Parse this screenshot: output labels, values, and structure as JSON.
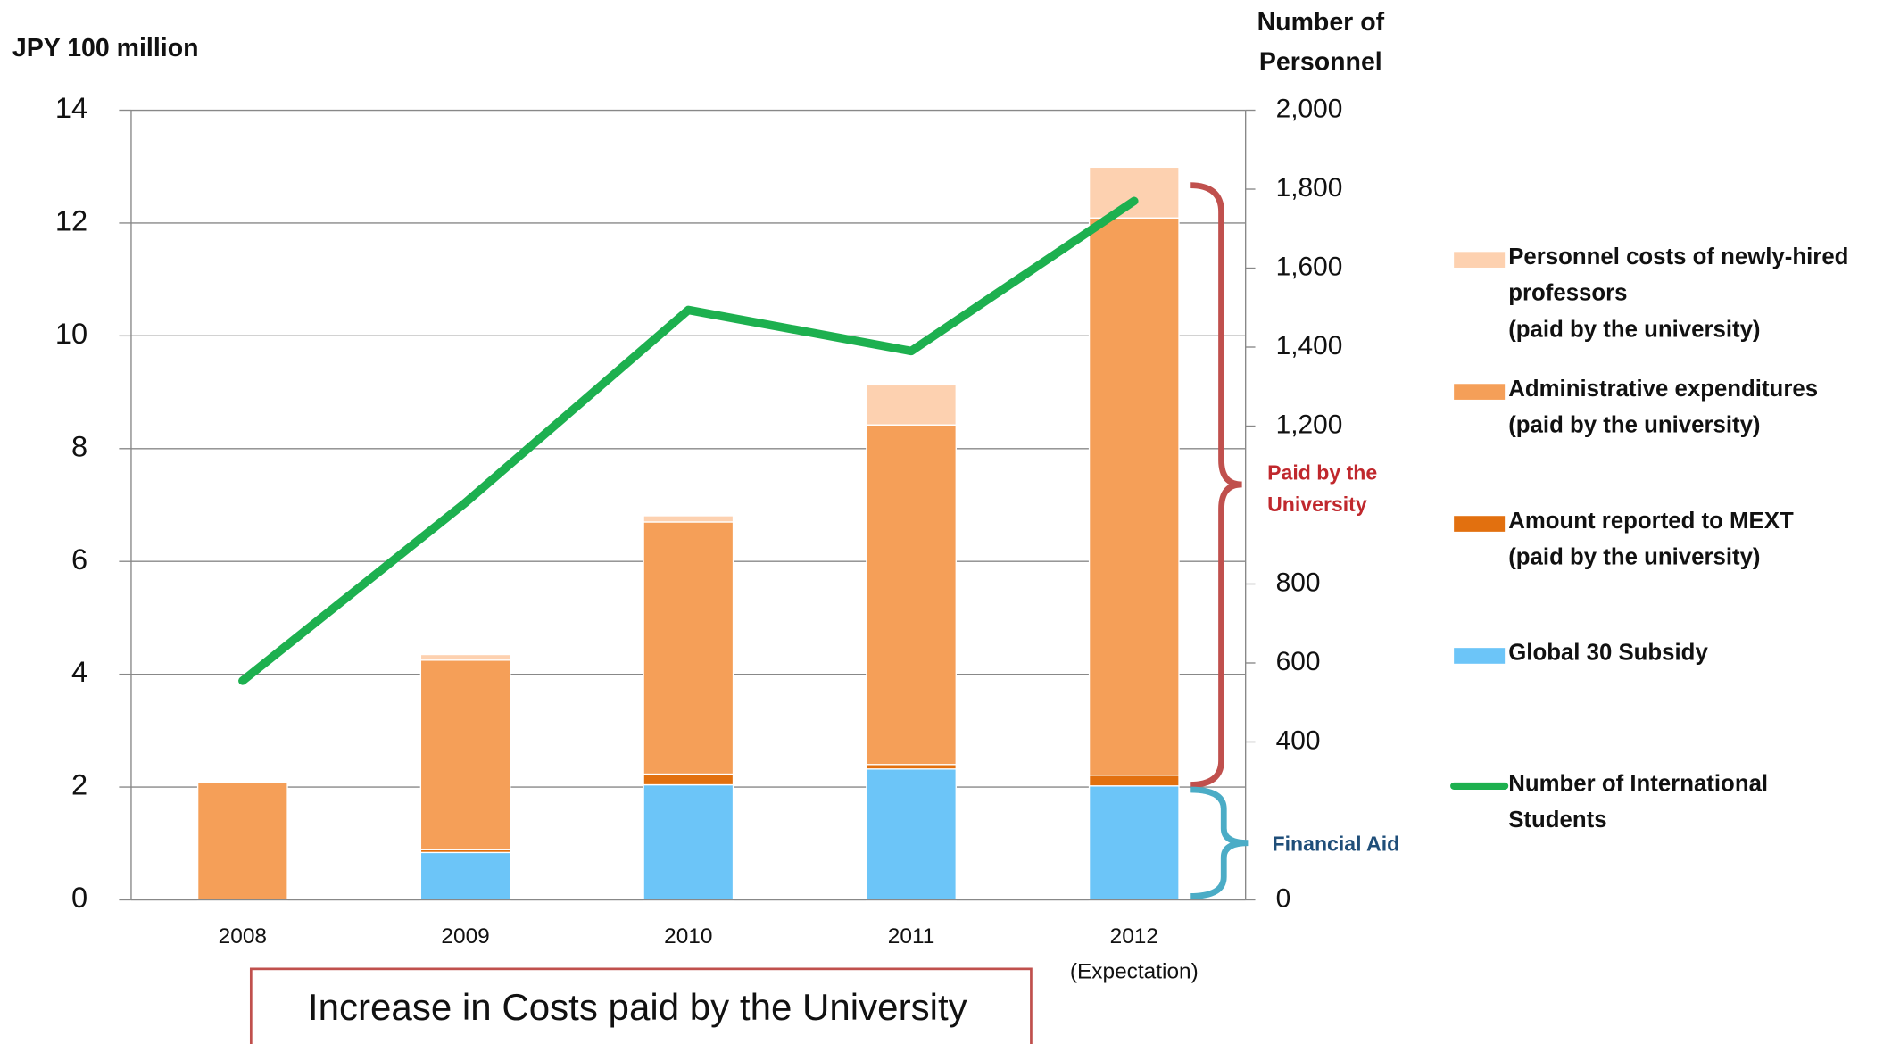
{
  "chart_data": {
    "type": "bar",
    "stacked": true,
    "y_axis_label": "JPY 100 million",
    "y2_axis_label": "Number of\nPersonnel",
    "categories": [
      "2008",
      "2009",
      "2010",
      "2011",
      "2012"
    ],
    "category_note": "(Expectation)",
    "series": [
      {
        "name": "Global 30 Subsidy",
        "color": "#6cc5f8",
        "values": [
          0,
          0.84,
          2.04,
          2.32,
          2.02
        ]
      },
      {
        "name": "Amount reported to MEXT\n(paid by the university)",
        "color": "#e2700f",
        "values": [
          0,
          0.05,
          0.19,
          0.08,
          0.19
        ]
      },
      {
        "name": "Administrative expenditures\n(paid by the university)",
        "color": "#f59f58",
        "values": [
          2.08,
          3.36,
          4.47,
          6.02,
          9.88
        ]
      },
      {
        "name": "Personnel costs of newly-hired\nprofessors\n(paid by the university)",
        "color": "#fdd1b0",
        "values": [
          0,
          0.1,
          0.11,
          0.71,
          0.9
        ]
      },
      {
        "name": "Number of International\nStudents",
        "color": "#1db04f",
        "type": "line",
        "axis": "y2",
        "values": [
          555,
          1006,
          1494,
          1390,
          1770
        ]
      }
    ],
    "ylim": [
      0,
      14
    ],
    "yticks": [
      0,
      2,
      4,
      6,
      8,
      10,
      12,
      14
    ],
    "y2lim": [
      0,
      2000
    ],
    "y2ticks": [
      0,
      400,
      600,
      800,
      {
        "value": 1200,
        "label": "1,200"
      },
      {
        "value": 1400,
        "label": "1,400"
      },
      {
        "value": 1600,
        "label": "1,600"
      },
      {
        "value": 1800,
        "label": "1,800"
      },
      {
        "value": 2000,
        "label": "2,000"
      }
    ],
    "grid": true,
    "annotations": [
      "Paid by the\nUniversity",
      "Financial Aid"
    ],
    "title": "Increase in Costs paid by the University"
  }
}
